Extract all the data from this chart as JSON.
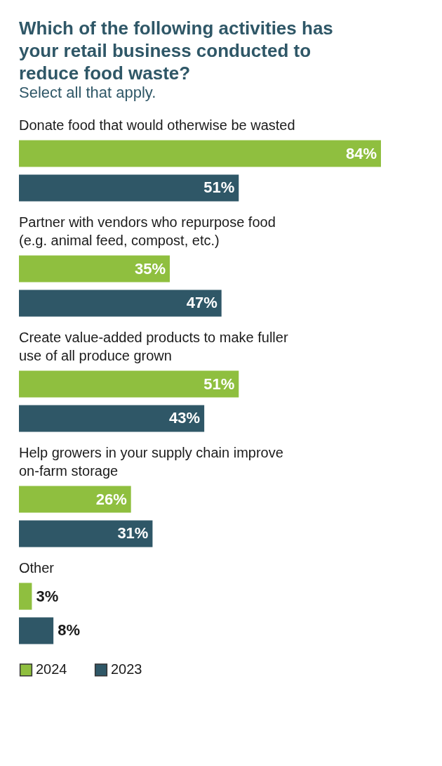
{
  "chart_data": {
    "type": "bar",
    "orientation": "horizontal",
    "title": "Which of the following activities has your retail business conducted to reduce food waste?",
    "subtitle": "Select all that apply.",
    "categories": [
      "Donate food that would otherwise be wasted",
      "Partner with vendors who repurpose food (e.g. animal feed, compost, etc.)",
      "Create value-added products to make fuller use of all produce grown",
      "Help growers in your supply chain improve on-farm storage",
      "Other"
    ],
    "series": [
      {
        "name": "2024",
        "color": "#8fbf3f",
        "values": [
          84,
          35,
          51,
          26,
          3
        ],
        "value_labels": [
          "84%",
          "35%",
          "51%",
          "26%",
          "3%"
        ]
      },
      {
        "name": "2023",
        "color": "#2f5767",
        "values": [
          51,
          47,
          43,
          31,
          8
        ],
        "value_labels": [
          "51%",
          "47%",
          "43%",
          "31%",
          "8%"
        ]
      }
    ],
    "legend": "bottom left"
  }
}
